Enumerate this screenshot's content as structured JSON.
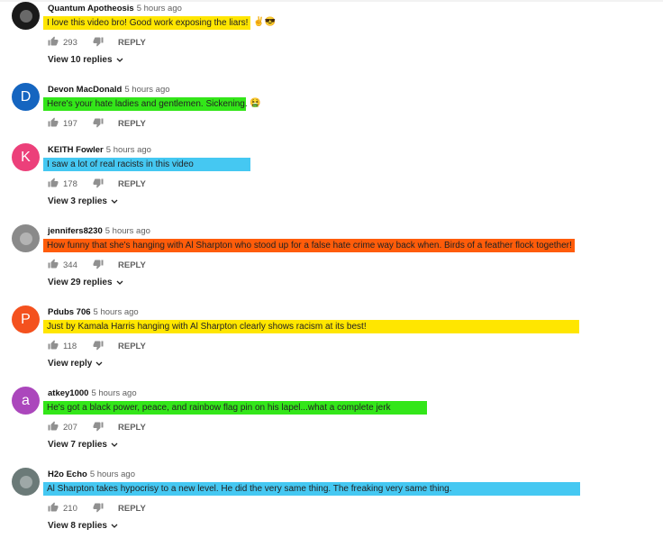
{
  "colors": {
    "yellow": "#ffe600",
    "green": "#33e619",
    "blue": "#45c8f2",
    "orange": "#ff5c0a"
  },
  "comments": [
    {
      "author": "Quantum Apotheosis",
      "time": "5 hours ago",
      "text": "I love this video bro! Good work exposing the liars!",
      "emoji": "✌😎",
      "likes": "293",
      "reply": "REPLY",
      "view_replies": "View 10 replies",
      "avatar": {
        "type": "image",
        "bg": "#1a1a1a"
      },
      "highlight": "#ffe600"
    },
    {
      "author": "Devon MacDonald",
      "time": "5 hours ago",
      "text": "Here's your hate ladies and gentlemen. Sickening.",
      "emoji": "🤮",
      "likes": "197",
      "reply": "REPLY",
      "avatar": {
        "type": "letter",
        "letter": "D",
        "bg": "#1565c0"
      },
      "highlight": "#33e619"
    },
    {
      "author": "KEITH Fowler",
      "time": "5 hours ago",
      "text": "I saw a lot of real racists in this video",
      "likes": "178",
      "reply": "REPLY",
      "view_replies": "View 3 replies",
      "avatar": {
        "type": "letter",
        "letter": "K",
        "bg": "#ec407a"
      },
      "highlight": "#45c8f2"
    },
    {
      "author": "jennifers8230",
      "time": "5 hours ago",
      "text": "How funny that she's hanging with Al Sharpton who stood up for a false hate crime way back when. Birds of a feather flock together!",
      "likes": "344",
      "reply": "REPLY",
      "view_replies": "View 29 replies",
      "avatar": {
        "type": "image",
        "bg": "#8a8a8a"
      },
      "highlight": "#ff5c0a"
    },
    {
      "author": "Pdubs 706",
      "time": "5 hours ago",
      "text": "Just by Kamala Harris hanging with Al Sharpton clearly shows racism at its best!",
      "likes": "118",
      "reply": "REPLY",
      "view_replies": "View reply",
      "avatar": {
        "type": "letter",
        "letter": "P",
        "bg": "#f4511e"
      },
      "highlight": "#ffe600"
    },
    {
      "author": "atkey1000",
      "time": "5 hours ago",
      "text": "He's got a black power, peace, and rainbow flag pin on his lapel...what a complete jerk",
      "likes": "207",
      "reply": "REPLY",
      "view_replies": "View 7 replies",
      "avatar": {
        "type": "letter",
        "letter": "a",
        "bg": "#ab47bc"
      },
      "highlight": "#33e619"
    },
    {
      "author": "H2o Echo",
      "time": "5 hours ago",
      "text": "Al Sharpton takes hypocrisy to a new level. He did the very same thing. The freaking very same thing.",
      "likes": "210",
      "reply": "REPLY",
      "view_replies": "View 8 replies",
      "avatar": {
        "type": "image",
        "bg": "#6b7a78"
      },
      "highlight": "#45c8f2"
    }
  ]
}
